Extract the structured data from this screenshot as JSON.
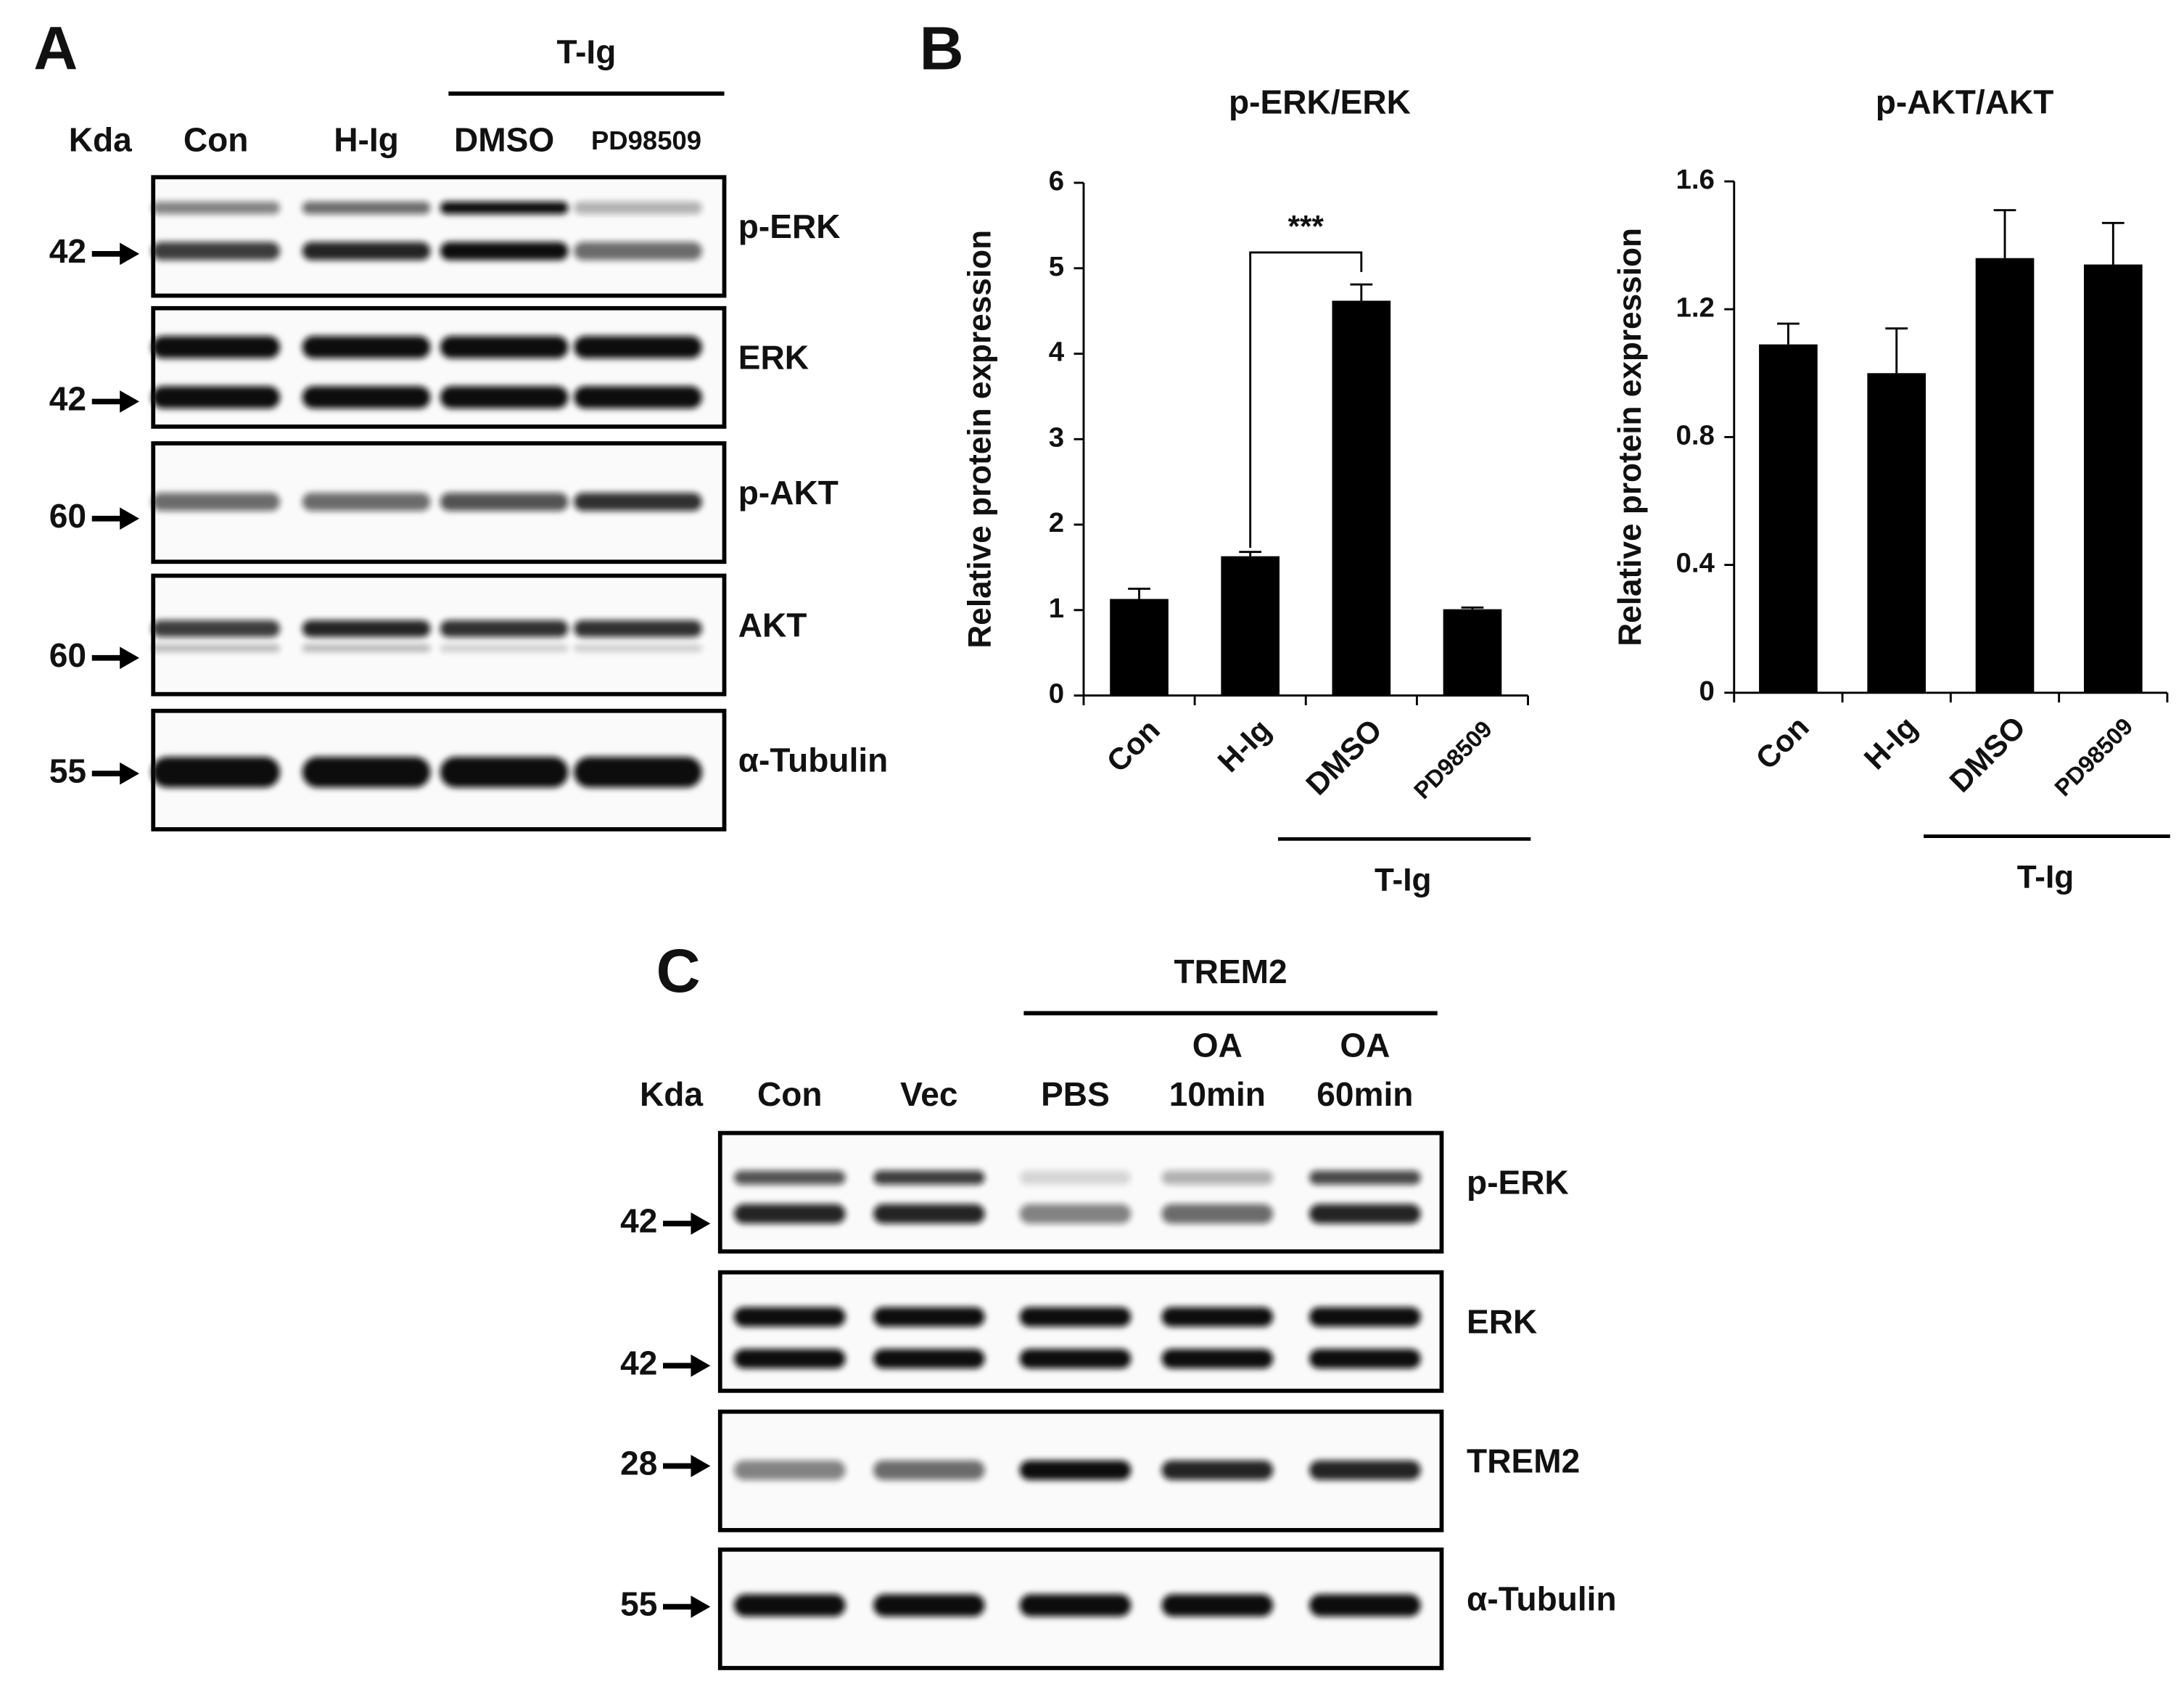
{
  "panel_a": {
    "letter": "A",
    "kda": "Kda",
    "group": "T-Ig",
    "lanes": [
      "Con",
      "H-Ig",
      "DMSO",
      "PD98509"
    ],
    "rows": [
      {
        "label": "p-ERK",
        "marker": 42
      },
      {
        "label": "ERK",
        "marker": 42
      },
      {
        "label": "p-AKT",
        "marker": 60
      },
      {
        "label": "AKT",
        "marker": 60
      },
      {
        "label": "α-Tubulin",
        "marker": 55
      }
    ]
  },
  "panel_b": {
    "letter": "B"
  },
  "chart_data": [
    {
      "type": "bar",
      "title": "p-ERK/ERK",
      "y_label": "Relative protein expression",
      "categories": [
        "Con",
        "H-Ig",
        "DMSO",
        "PD98509"
      ],
      "values": [
        1.13,
        1.63,
        4.62,
        1.01
      ],
      "errors": [
        0.12,
        0.05,
        0.19,
        0.02
      ],
      "color": "#000000",
      "ylim": [
        0,
        6
      ],
      "yticks": [
        0,
        1,
        2,
        3,
        4,
        5,
        6
      ],
      "annotation": "***",
      "group_label": "T-Ig"
    },
    {
      "type": "bar",
      "title": "p-AKT/AKT",
      "y_label": "Relative protein expression",
      "categories": [
        "Con",
        "H-Ig",
        "DMSO",
        "PD98509"
      ],
      "values": [
        1.09,
        1.0,
        1.36,
        1.34
      ],
      "errors": [
        0.065,
        0.14,
        0.15,
        0.13
      ],
      "color": "#000000",
      "ylim": [
        0,
        1.6
      ],
      "yticks": [
        0,
        0.4,
        0.8,
        1.2,
        1.6
      ],
      "group_label": "T-Ig"
    }
  ],
  "panel_c": {
    "letter": "C",
    "kda": "Kda",
    "group": "TREM2",
    "lanes": [
      [
        "Con"
      ],
      [
        "Vec"
      ],
      [
        "PBS"
      ],
      [
        "OA",
        "10min"
      ],
      [
        "OA",
        "60min"
      ]
    ],
    "rows": [
      {
        "label": "p-ERK",
        "marker": 42
      },
      {
        "label": "ERK",
        "marker": 42
      },
      {
        "label": "TREM2",
        "marker": 28
      },
      {
        "label": "α-Tubulin",
        "marker": 55
      }
    ]
  }
}
